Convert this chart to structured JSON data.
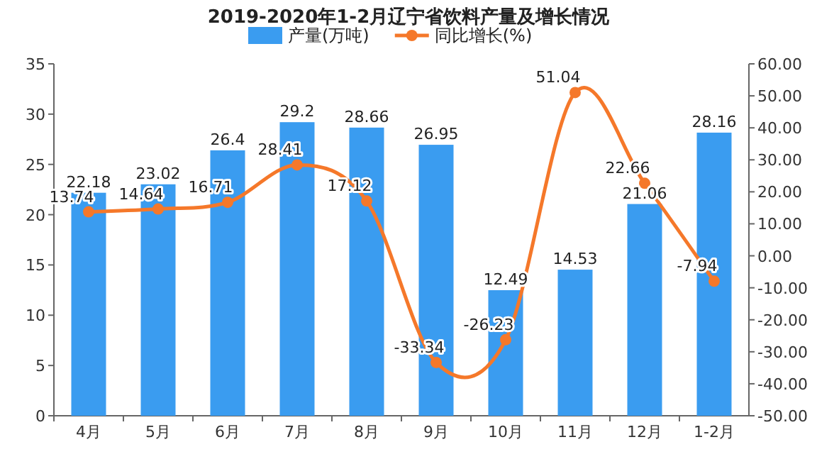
{
  "chart_data": {
    "type": "bar",
    "title": "2019-2020年1-2月辽宁省饮料产量及增长情况",
    "categories": [
      "4月",
      "5月",
      "6月",
      "7月",
      "8月",
      "9月",
      "10月",
      "11月",
      "12月",
      "1-2月"
    ],
    "series": [
      {
        "name": "产量(万吨)",
        "color": "#3a9cf0",
        "values": [
          22.18,
          23.02,
          26.4,
          29.2,
          28.66,
          26.95,
          12.49,
          14.53,
          21.06,
          28.16
        ]
      },
      {
        "name": "同比增长(%)",
        "type": "line",
        "axis": "y2",
        "color": "#f5782a",
        "marker": "circle",
        "values": [
          13.74,
          14.64,
          16.71,
          28.41,
          17.12,
          -33.34,
          -26.23,
          51.04,
          22.66,
          -7.94
        ]
      }
    ],
    "ylim": [
      0,
      35
    ],
    "yticks": [
      0,
      5,
      10,
      15,
      20,
      25,
      30,
      35
    ],
    "y2lim": [
      -50,
      60
    ],
    "y2ticks": [
      {
        "value": -50,
        "label": "-50.00"
      },
      {
        "value": -40,
        "label": "-40.00"
      },
      {
        "value": -30,
        "label": "-30.00"
      },
      {
        "value": -20,
        "label": "-20.00"
      },
      {
        "value": -10,
        "label": "-10.00"
      },
      {
        "value": 0,
        "label": "0.00"
      },
      {
        "value": 10,
        "label": "10.00"
      },
      {
        "value": 20,
        "label": "20.00"
      },
      {
        "value": 30,
        "label": "30.00"
      },
      {
        "value": 40,
        "label": "40.00"
      },
      {
        "value": 50,
        "label": "50.00"
      },
      {
        "value": 60,
        "label": "60.00"
      }
    ],
    "data_labels": true,
    "legend": "top",
    "grid": false
  }
}
